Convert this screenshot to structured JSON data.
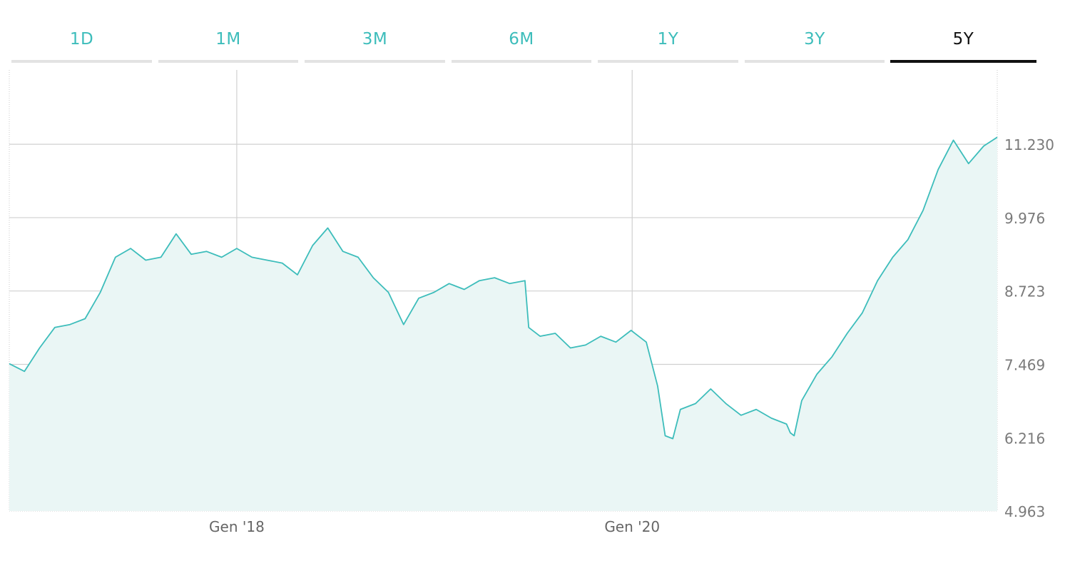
{
  "tabs": [
    {
      "label": "1D",
      "active": false
    },
    {
      "label": "1M",
      "active": false
    },
    {
      "label": "3M",
      "active": false
    },
    {
      "label": "6M",
      "active": false
    },
    {
      "label": "1Y",
      "active": false
    },
    {
      "label": "3Y",
      "active": false
    },
    {
      "label": "5Y",
      "active": true
    }
  ],
  "colors": {
    "accent": "#3dbdbb",
    "fill": "#eaf6f5",
    "grid": "#d0d0d0",
    "text": "#7a7a7a"
  },
  "chart_data": {
    "type": "area",
    "title": "",
    "xlabel": "",
    "ylabel": "",
    "grid": true,
    "x_tick_labels": [
      {
        "label": "Gen '18",
        "date": "2018-01-01"
      },
      {
        "label": "Gen '20",
        "date": "2020-01-01"
      }
    ],
    "y_tick_labels": [
      "4.963",
      "6.216",
      "7.469",
      "8.723",
      "9.976",
      "11.230"
    ],
    "y_ticks": [
      4963,
      6216,
      7469,
      8723,
      9976,
      11230
    ],
    "ylim": [
      4963,
      12500
    ],
    "xlim": [
      "2016-11-07",
      "2021-11-05"
    ],
    "series": [
      {
        "x": [
          "2016-11-07",
          "2016-12-05",
          "2017-01-02",
          "2017-01-30",
          "2017-02-27",
          "2017-03-27",
          "2017-04-24",
          "2017-05-22",
          "2017-06-19",
          "2017-07-17",
          "2017-08-14",
          "2017-09-11",
          "2017-10-09",
          "2017-11-06",
          "2017-12-04",
          "2018-01-01",
          "2018-01-29",
          "2018-02-26",
          "2018-03-26",
          "2018-04-23",
          "2018-05-21",
          "2018-06-18",
          "2018-07-16",
          "2018-08-13",
          "2018-09-10",
          "2018-10-08",
          "2018-11-05",
          "2018-12-03",
          "2018-12-31",
          "2019-01-28",
          "2019-02-25",
          "2019-03-25",
          "2019-04-22",
          "2019-05-20",
          "2019-06-17",
          "2019-06-24",
          "2019-07-15",
          "2019-08-12",
          "2019-09-09",
          "2019-10-07",
          "2019-11-04",
          "2019-12-02",
          "2019-12-30",
          "2020-01-27",
          "2020-02-17",
          "2020-03-02",
          "2020-03-16",
          "2020-03-30",
          "2020-04-27",
          "2020-05-25",
          "2020-06-22",
          "2020-07-20",
          "2020-08-17",
          "2020-09-14",
          "2020-10-12",
          "2020-10-19",
          "2020-10-26",
          "2020-11-09",
          "2020-12-07",
          "2021-01-04",
          "2021-02-01",
          "2021-03-01",
          "2021-03-29",
          "2021-04-26",
          "2021-05-24",
          "2021-06-21",
          "2021-07-19",
          "2021-08-16",
          "2021-09-13",
          "2021-10-11",
          "2021-11-05"
        ],
        "values": [
          7480,
          7350,
          7750,
          8100,
          8150,
          8250,
          8700,
          9300,
          9450,
          9250,
          9300,
          9700,
          9350,
          9400,
          9300,
          9450,
          9300,
          9250,
          9200,
          9000,
          9500,
          9800,
          9400,
          9300,
          8950,
          8700,
          8150,
          8600,
          8700,
          8850,
          8750,
          8900,
          8950,
          8850,
          8900,
          8100,
          7950,
          8000,
          7750,
          7800,
          7950,
          7850,
          8050,
          7850,
          7100,
          6250,
          6200,
          6700,
          6800,
          7050,
          6800,
          6600,
          6700,
          6550,
          6450,
          6300,
          6250,
          6850,
          7300,
          7600,
          8000,
          8350,
          8900,
          9300,
          9600,
          10100,
          10800,
          11300,
          10900,
          11200,
          11350
        ]
      }
    ]
  }
}
